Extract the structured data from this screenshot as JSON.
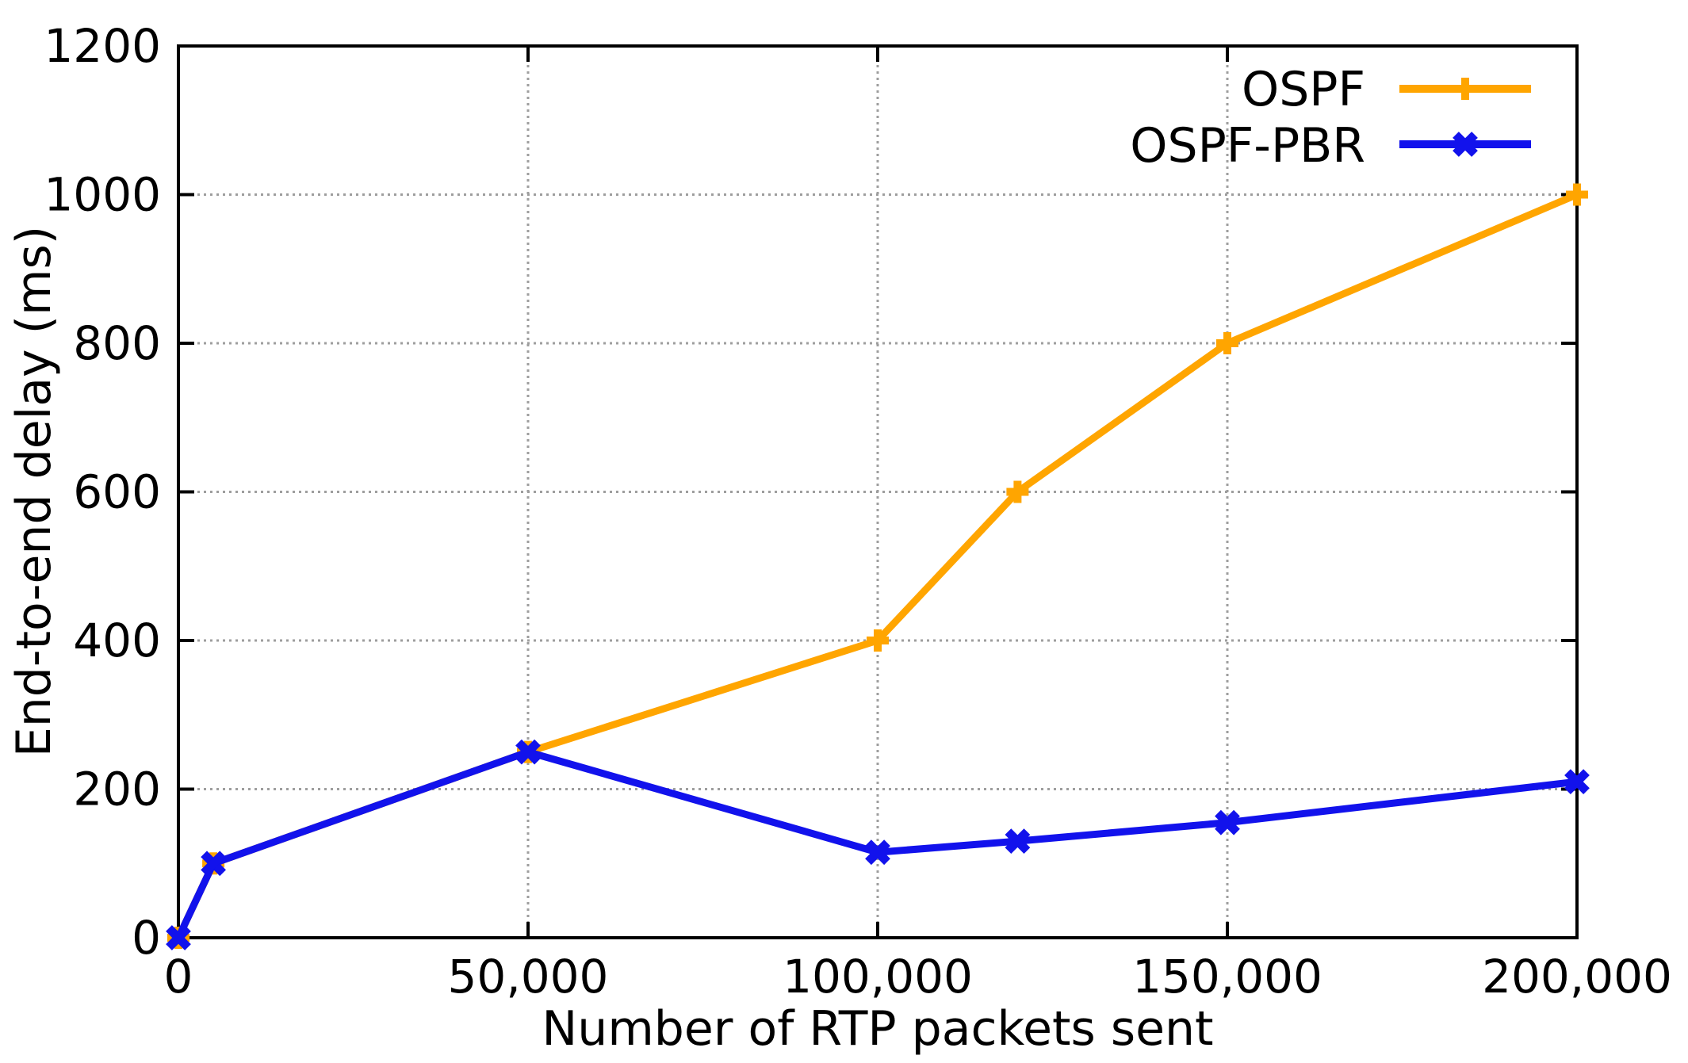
{
  "figure": {
    "background": "#ffffff",
    "border_color": "#000000",
    "grid_color": "#9e9e9e",
    "text_color": "#000000"
  },
  "chart_data": {
    "type": "line",
    "title": "",
    "xlabel": "Number of RTP packets sent",
    "ylabel": "End-to-end delay (ms)",
    "xlim": [
      0,
      200000
    ],
    "ylim": [
      0,
      1200
    ],
    "grid": true,
    "legend_position": "top-right",
    "x_ticks": {
      "values": [
        0,
        50000,
        100000,
        150000,
        200000
      ],
      "labels": [
        "0",
        "50,000",
        "100,000",
        "150,000",
        "200,000"
      ]
    },
    "y_ticks": {
      "values": [
        0,
        200,
        400,
        600,
        800,
        1000,
        1200
      ],
      "labels": [
        "0",
        "200",
        "400",
        "600",
        "800",
        "1000",
        "1200"
      ]
    },
    "series": [
      {
        "name": "OSPF",
        "color": "#FFA500",
        "marker": "plus",
        "x": [
          0,
          5000,
          50000,
          100000,
          120000,
          150000,
          200000
        ],
        "y": [
          0,
          100,
          250,
          400,
          600,
          800,
          1000
        ]
      },
      {
        "name": "OSPF-PBR",
        "color": "#1212EC",
        "marker": "cross",
        "x": [
          0,
          5000,
          50000,
          100000,
          120000,
          150000,
          200000
        ],
        "y": [
          0,
          100,
          250,
          115,
          130,
          155,
          210
        ]
      }
    ]
  }
}
